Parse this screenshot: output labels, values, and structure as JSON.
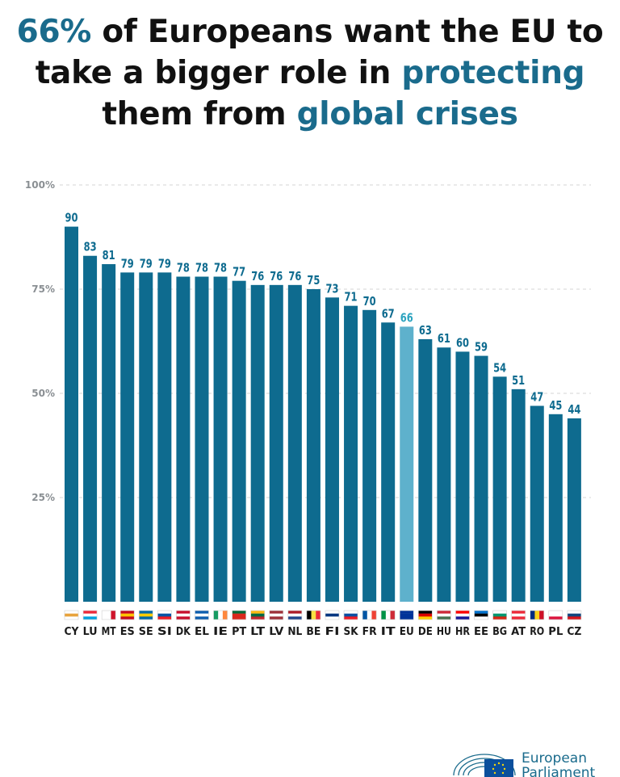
{
  "title": {
    "p1": "66%",
    "p2": " of Europeans want the EU to",
    "p3": "take a bigger role in ",
    "p4": "protecting",
    "p5": "them from ",
    "p6": "global crises"
  },
  "chart_data": {
    "type": "bar",
    "title": "66% of Europeans want the EU to take a bigger role in protecting them from global crises",
    "xlabel": "",
    "ylabel": "",
    "ylim": [
      0,
      100
    ],
    "yticks": [
      25,
      50,
      75,
      100
    ],
    "ytick_labels": [
      "25%",
      "50%",
      "75%",
      "100%"
    ],
    "grid": true,
    "categories": [
      "CY",
      "LU",
      "MT",
      "ES",
      "SE",
      "SI",
      "DK",
      "EL",
      "IE",
      "PT",
      "LT",
      "LV",
      "NL",
      "BE",
      "FI",
      "SK",
      "FR",
      "IT",
      "EU",
      "DE",
      "HU",
      "HR",
      "EE",
      "BG",
      "AT",
      "RO",
      "PL",
      "CZ"
    ],
    "values": [
      90,
      83,
      81,
      79,
      79,
      79,
      78,
      78,
      78,
      77,
      76,
      76,
      76,
      75,
      73,
      71,
      70,
      67,
      66,
      63,
      61,
      60,
      59,
      54,
      51,
      47,
      45,
      44
    ],
    "highlight": "EU",
    "bar_color": "#0e6b8f",
    "highlight_color": "#5eb1cc",
    "highlight_label_color": "#2ba3bf"
  },
  "logo": {
    "line1": "European",
    "line2": "Parliament"
  }
}
